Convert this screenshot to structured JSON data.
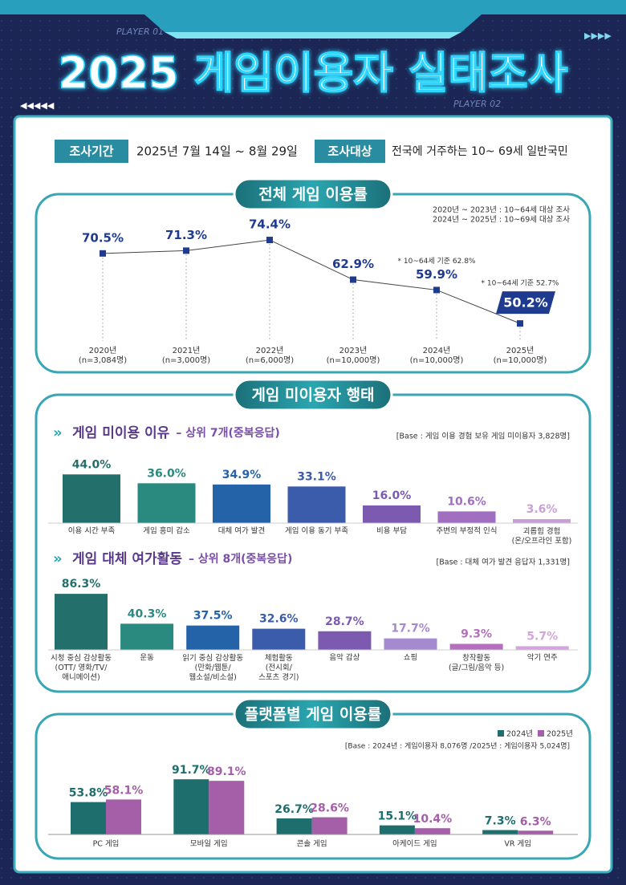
{
  "header": {
    "player_left": "PLAYER 01",
    "player_right": "PLAYER 02",
    "title": "2025 게임이용자 실태조사",
    "period_label": "조사기간",
    "period": "2025년 7월 14일 ~ 8월 29일",
    "target_label": "조사대상",
    "target": "전국에 거주하는 10~ 69세 일반국민"
  },
  "sections": [
    "전체 게임 이용률",
    "게임 미이용자 행태",
    "플랫폼별 게임 이용률"
  ],
  "chart_data": [
    {
      "type": "line",
      "notes": [
        "2020년 ~ 2023년 : 10~64세 대상 조사",
        "2024년 ~ 2025년 : 10~69세 대상 조사"
      ],
      "categories": [
        "2020년",
        "2021년",
        "2022년",
        "2023년",
        "2024년",
        "2025년"
      ],
      "sample_sizes": [
        "(n=3,084명)",
        "(n=3,000명)",
        "(n=6,000명)",
        "(n=10,000명)",
        "(n=10,000명)",
        "(n=10,000명)"
      ],
      "values": [
        70.5,
        71.3,
        74.4,
        62.9,
        59.9,
        50.2
      ],
      "value_labels": [
        "70.5%",
        "71.3%",
        "74.4%",
        "62.9%",
        "59.9%",
        "50.2%"
      ],
      "annotations": [
        null,
        null,
        null,
        null,
        "* 10~64세 기준 62.8%",
        "* 10~64세 기준 52.7%"
      ],
      "color": "#1f3b8f",
      "ylim": [
        40,
        80
      ]
    },
    {
      "type": "bar",
      "title": "게임 미이용 이유",
      "subtitle": "– 상위 7개(중복응답)",
      "note": "[Base : 게임 이용 경험 보유 게임 미이용자 3,828명]",
      "categories": [
        "이용 시간 부족",
        "게임 흥미 감소",
        "대체 여가 발견",
        "게임 이용 동기 부족",
        "비용 부담",
        "주변의 부정적 인식",
        "괴롭힘 경험\n(온/오프라인 포함)"
      ],
      "values": [
        44.0,
        36.0,
        34.9,
        33.1,
        16.0,
        10.6,
        3.6
      ],
      "value_labels": [
        "44.0%",
        "36.0%",
        "34.9%",
        "33.1%",
        "16.0%",
        "10.6%",
        "3.6%"
      ],
      "colors": [
        "#236f6c",
        "#2a8a80",
        "#2563a8",
        "#3b5cab",
        "#7b5ab0",
        "#a06fc0",
        "#c9a0d6"
      ],
      "ylim": [
        0,
        50
      ]
    },
    {
      "type": "bar",
      "title": "게임 대체 여가활동",
      "subtitle": "– 상위 8개(중복응답)",
      "note": "[Base : 대체 여가 발견 응답자 1,331명]",
      "categories": [
        "시청 중심 감상활동\n(OTT/ 영화/TV/\n애니메이션)",
        "운동",
        "읽기 중심 감상활동\n(만화/웹툰/\n웹소설/비소설)",
        "체험활동\n(전시회/\n스포츠 경기)",
        "음악 감상",
        "쇼핑",
        "창작활동\n(글/그림/음악 등)",
        "악기 연주"
      ],
      "values": [
        86.3,
        40.3,
        37.5,
        32.6,
        28.7,
        17.7,
        9.3,
        5.7
      ],
      "value_labels": [
        "86.3%",
        "40.3%",
        "37.5%",
        "32.6%",
        "28.7%",
        "17.7%",
        "9.3%",
        "5.7%"
      ],
      "colors": [
        "#236f6c",
        "#2a8a80",
        "#2563a8",
        "#3b5cab",
        "#7b5ab0",
        "#a68ad0",
        "#b56fbf",
        "#d3a5dc"
      ],
      "ylim": [
        0,
        100
      ]
    },
    {
      "type": "grouped_bar",
      "note": "[Base : 2024년 : 게임이용자 8,076명 /2025년 : 게임이용자 5,024명]",
      "categories": [
        "PC 게임",
        "모바일 게임",
        "콘솔 게임",
        "아케이드 게임",
        "VR 게임"
      ],
      "series": [
        {
          "name": "2024년",
          "color": "#1f6e6e",
          "values": [
            53.8,
            91.7,
            26.7,
            15.1,
            7.3
          ],
          "value_labels": [
            "53.8%",
            "91.7%",
            "26.7%",
            "15.1%",
            "7.3%"
          ]
        },
        {
          "name": "2025년",
          "color": "#a45fa8",
          "values": [
            58.1,
            89.1,
            28.6,
            10.4,
            6.3
          ],
          "value_labels": [
            "58.1%",
            "89.1%",
            "28.6%",
            "10.4%",
            "6.3%"
          ]
        }
      ],
      "legend": "top-right",
      "ylim": [
        0,
        100
      ]
    }
  ]
}
